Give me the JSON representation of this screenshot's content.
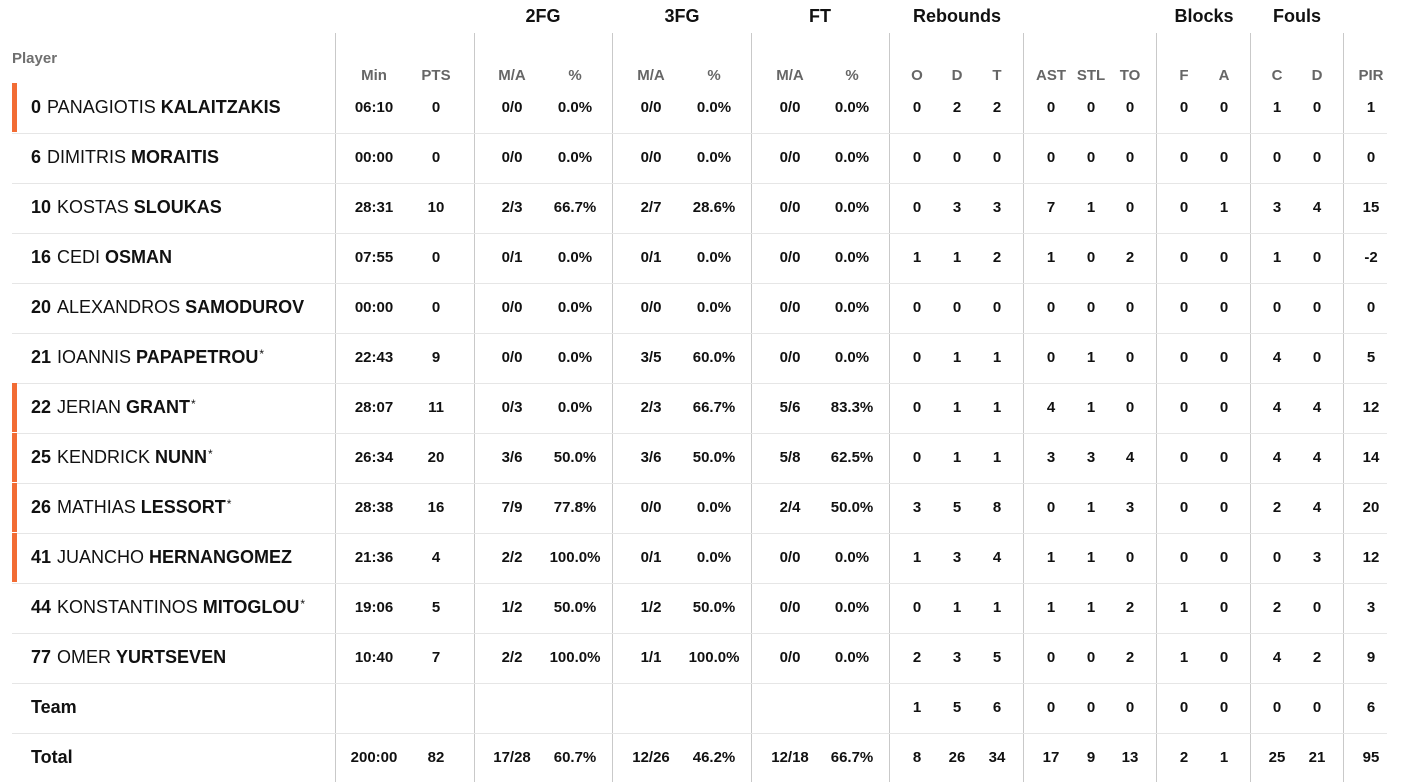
{
  "header": {
    "player_label": "Player",
    "groups": [
      "2FG",
      "3FG",
      "FT",
      "Rebounds",
      "Blocks",
      "Fouls"
    ],
    "columns": [
      "Min",
      "PTS",
      "M/A",
      "%",
      "M/A",
      "%",
      "M/A",
      "%",
      "O",
      "D",
      "T",
      "AST",
      "STL",
      "TO",
      "F",
      "A",
      "C",
      "D",
      "PIR"
    ]
  },
  "rows": [
    {
      "number": "0",
      "first": "PANAGIOTIS",
      "last": "KALAITZAKIS",
      "star": "",
      "accent": true,
      "stats": [
        "06:10",
        "0",
        "0/0",
        "0.0%",
        "0/0",
        "0.0%",
        "0/0",
        "0.0%",
        "0",
        "2",
        "2",
        "0",
        "0",
        "0",
        "0",
        "0",
        "1",
        "0",
        "1"
      ]
    },
    {
      "number": "6",
      "first": "DIMITRIS",
      "last": "MORAITIS",
      "star": "",
      "accent": false,
      "stats": [
        "00:00",
        "0",
        "0/0",
        "0.0%",
        "0/0",
        "0.0%",
        "0/0",
        "0.0%",
        "0",
        "0",
        "0",
        "0",
        "0",
        "0",
        "0",
        "0",
        "0",
        "0",
        "0"
      ]
    },
    {
      "number": "10",
      "first": "KOSTAS",
      "last": "SLOUKAS",
      "star": "",
      "accent": false,
      "stats": [
        "28:31",
        "10",
        "2/3",
        "66.7%",
        "2/7",
        "28.6%",
        "0/0",
        "0.0%",
        "0",
        "3",
        "3",
        "7",
        "1",
        "0",
        "0",
        "1",
        "3",
        "4",
        "15"
      ]
    },
    {
      "number": "16",
      "first": "CEDI",
      "last": "OSMAN",
      "star": "",
      "accent": false,
      "stats": [
        "07:55",
        "0",
        "0/1",
        "0.0%",
        "0/1",
        "0.0%",
        "0/0",
        "0.0%",
        "1",
        "1",
        "2",
        "1",
        "0",
        "2",
        "0",
        "0",
        "1",
        "0",
        "-2"
      ]
    },
    {
      "number": "20",
      "first": "ALEXANDROS",
      "last": "SAMODUROV",
      "star": "",
      "accent": false,
      "stats": [
        "00:00",
        "0",
        "0/0",
        "0.0%",
        "0/0",
        "0.0%",
        "0/0",
        "0.0%",
        "0",
        "0",
        "0",
        "0",
        "0",
        "0",
        "0",
        "0",
        "0",
        "0",
        "0"
      ]
    },
    {
      "number": "21",
      "first": "IOANNIS",
      "last": "PAPAPETROU",
      "star": "*",
      "accent": false,
      "stats": [
        "22:43",
        "9",
        "0/0",
        "0.0%",
        "3/5",
        "60.0%",
        "0/0",
        "0.0%",
        "0",
        "1",
        "1",
        "0",
        "1",
        "0",
        "0",
        "0",
        "4",
        "0",
        "5"
      ]
    },
    {
      "number": "22",
      "first": "JERIAN",
      "last": "GRANT",
      "star": "*",
      "accent": true,
      "stats": [
        "28:07",
        "11",
        "0/3",
        "0.0%",
        "2/3",
        "66.7%",
        "5/6",
        "83.3%",
        "0",
        "1",
        "1",
        "4",
        "1",
        "0",
        "0",
        "0",
        "4",
        "4",
        "12"
      ]
    },
    {
      "number": "25",
      "first": "KENDRICK",
      "last": "NUNN",
      "star": "*",
      "accent": true,
      "stats": [
        "26:34",
        "20",
        "3/6",
        "50.0%",
        "3/6",
        "50.0%",
        "5/8",
        "62.5%",
        "0",
        "1",
        "1",
        "3",
        "3",
        "4",
        "0",
        "0",
        "4",
        "4",
        "14"
      ]
    },
    {
      "number": "26",
      "first": "MATHIAS",
      "last": "LESSORT",
      "star": "*",
      "accent": true,
      "stats": [
        "28:38",
        "16",
        "7/9",
        "77.8%",
        "0/0",
        "0.0%",
        "2/4",
        "50.0%",
        "3",
        "5",
        "8",
        "0",
        "1",
        "3",
        "0",
        "0",
        "2",
        "4",
        "20"
      ]
    },
    {
      "number": "41",
      "first": "JUANCHO",
      "last": "HERNANGOMEZ",
      "star": "",
      "accent": true,
      "stats": [
        "21:36",
        "4",
        "2/2",
        "100.0%",
        "0/1",
        "0.0%",
        "0/0",
        "0.0%",
        "1",
        "3",
        "4",
        "1",
        "1",
        "0",
        "0",
        "0",
        "0",
        "3",
        "12"
      ]
    },
    {
      "number": "44",
      "first": "KONSTANTINOS",
      "last": "MITOGLOU",
      "star": "*",
      "accent": false,
      "stats": [
        "19:06",
        "5",
        "1/2",
        "50.0%",
        "1/2",
        "50.0%",
        "0/0",
        "0.0%",
        "0",
        "1",
        "1",
        "1",
        "1",
        "2",
        "1",
        "0",
        "2",
        "0",
        "3"
      ]
    },
    {
      "number": "77",
      "first": "OMER",
      "last": "YURTSEVEN",
      "star": "",
      "accent": false,
      "stats": [
        "10:40",
        "7",
        "2/2",
        "100.0%",
        "1/1",
        "100.0%",
        "0/0",
        "0.0%",
        "2",
        "3",
        "5",
        "0",
        "0",
        "2",
        "1",
        "0",
        "4",
        "2",
        "9"
      ]
    },
    {
      "label": "Team",
      "accent": false,
      "stats": [
        "",
        "",
        "",
        "",
        "",
        "",
        "",
        "",
        "1",
        "5",
        "6",
        "0",
        "0",
        "0",
        "0",
        "0",
        "0",
        "0",
        "6"
      ]
    },
    {
      "label": "Total",
      "accent": false,
      "stats": [
        "200:00",
        "82",
        "17/28",
        "60.7%",
        "12/26",
        "46.2%",
        "12/18",
        "66.7%",
        "8",
        "26",
        "34",
        "17",
        "9",
        "13",
        "2",
        "1",
        "25",
        "21",
        "95"
      ]
    }
  ],
  "colors": {
    "accent": "#f26c34",
    "divider": "#c9c9c9",
    "row_border": "#e6e6e6",
    "header_text": "#666666"
  }
}
